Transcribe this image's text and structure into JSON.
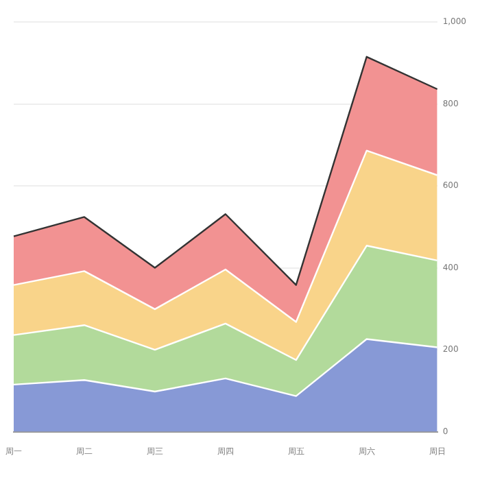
{
  "chart_data": {
    "type": "area",
    "stacked": true,
    "categories": [
      "周一",
      "周二",
      "周三",
      "周四",
      "周五",
      "周六",
      "周日"
    ],
    "series": [
      {
        "color": "#8799d6",
        "values": [
          115,
          126,
          98,
          130,
          87,
          226,
          206
        ]
      },
      {
        "color": "#b2da9b",
        "values": [
          121,
          134,
          102,
          134,
          88,
          228,
          212
        ]
      },
      {
        "color": "#f9d48a",
        "values": [
          122,
          132,
          99,
          132,
          93,
          232,
          208
        ]
      },
      {
        "color": "#f29292",
        "values": [
          119,
          132,
          101,
          135,
          90,
          229,
          210
        ]
      }
    ],
    "ylim": [
      0,
      1000
    ],
    "yticks": [
      0,
      200,
      400,
      600,
      800,
      {
        "value": 1000,
        "label": "1,000"
      }
    ],
    "grid": "y",
    "legend": false,
    "marker": "none"
  }
}
